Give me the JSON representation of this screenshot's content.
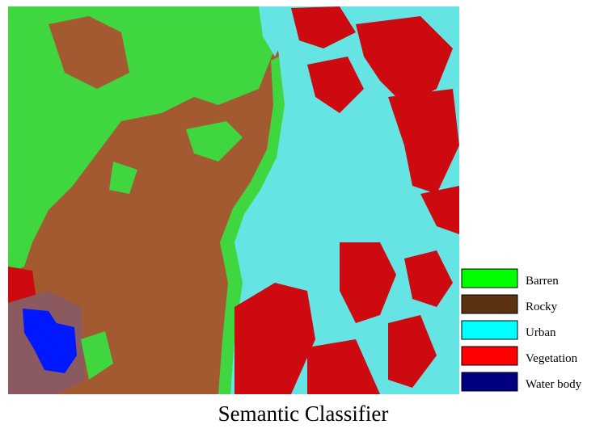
{
  "legend": {
    "items": [
      {
        "label": "Barren",
        "color": "#00ff00"
      },
      {
        "label": "Rocky",
        "color": "#5c3210"
      },
      {
        "label": "Urban",
        "color": "#00ffff"
      },
      {
        "label": "Vegetation",
        "color": "#ff0000"
      },
      {
        "label": "Water body",
        "color": "#000080"
      }
    ]
  },
  "caption": "Semantic Classifier"
}
